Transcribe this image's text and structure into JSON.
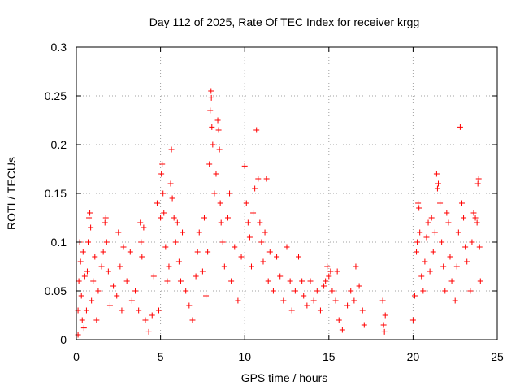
{
  "chart_data": {
    "type": "scatter",
    "title": "Day 112 of 2025, Rate Of TEC Index for receiver krgg",
    "xlabel": "GPS time / hours",
    "ylabel": "ROTI / TECUs",
    "xlim": [
      0,
      25
    ],
    "ylim": [
      0,
      0.3
    ],
    "xticks": [
      "0",
      "5",
      "10",
      "15",
      "20",
      "25"
    ],
    "yticks": [
      "0",
      "0.05",
      "0.1",
      "0.15",
      "0.2",
      "0.25",
      "0.3"
    ],
    "grid": true,
    "legend": "none",
    "marker": "plus",
    "color": "#ff0000",
    "series": [
      {
        "points": [
          [
            0.1,
            0.005
          ],
          [
            0.1,
            0.03
          ],
          [
            0.15,
            0.06
          ],
          [
            0.2,
            0.1
          ],
          [
            0.25,
            0.08
          ],
          [
            0.3,
            0.045
          ],
          [
            0.35,
            0.02
          ],
          [
            0.4,
            0.09
          ],
          [
            0.45,
            0.012
          ],
          [
            0.5,
            0.065
          ],
          [
            0.6,
            0.03
          ],
          [
            0.65,
            0.07
          ],
          [
            0.7,
            0.1
          ],
          [
            0.75,
            0.125
          ],
          [
            0.8,
            0.13
          ],
          [
            0.85,
            0.115
          ],
          [
            0.9,
            0.04
          ],
          [
            1.0,
            0.06
          ],
          [
            1.1,
            0.085
          ],
          [
            1.2,
            0.02
          ],
          [
            1.3,
            0.05
          ],
          [
            1.5,
            0.075
          ],
          [
            1.6,
            0.09
          ],
          [
            1.7,
            0.12
          ],
          [
            1.75,
            0.125
          ],
          [
            1.8,
            0.1
          ],
          [
            1.9,
            0.07
          ],
          [
            2.0,
            0.035
          ],
          [
            2.2,
            0.055
          ],
          [
            2.4,
            0.045
          ],
          [
            2.5,
            0.11
          ],
          [
            2.6,
            0.075
          ],
          [
            2.7,
            0.03
          ],
          [
            2.8,
            0.095
          ],
          [
            3.0,
            0.06
          ],
          [
            3.2,
            0.09
          ],
          [
            3.3,
            0.04
          ],
          [
            3.5,
            0.05
          ],
          [
            3.7,
            0.03
          ],
          [
            3.8,
            0.12
          ],
          [
            3.85,
            0.1
          ],
          [
            3.9,
            0.085
          ],
          [
            4.0,
            0.115
          ],
          [
            4.1,
            0.02
          ],
          [
            4.3,
            0.008
          ],
          [
            4.5,
            0.025
          ],
          [
            4.6,
            0.065
          ],
          [
            4.8,
            0.14
          ],
          [
            4.9,
            0.03
          ],
          [
            5.0,
            0.125
          ],
          [
            5.05,
            0.17
          ],
          [
            5.1,
            0.18
          ],
          [
            5.15,
            0.15
          ],
          [
            5.2,
            0.13
          ],
          [
            5.3,
            0.095
          ],
          [
            5.4,
            0.06
          ],
          [
            5.5,
            0.075
          ],
          [
            5.6,
            0.16
          ],
          [
            5.65,
            0.195
          ],
          [
            5.7,
            0.145
          ],
          [
            5.8,
            0.125
          ],
          [
            5.9,
            0.1
          ],
          [
            6.0,
            0.12
          ],
          [
            6.1,
            0.08
          ],
          [
            6.2,
            0.06
          ],
          [
            6.3,
            0.11
          ],
          [
            6.5,
            0.05
          ],
          [
            6.7,
            0.035
          ],
          [
            6.9,
            0.02
          ],
          [
            7.1,
            0.065
          ],
          [
            7.2,
            0.09
          ],
          [
            7.3,
            0.11
          ],
          [
            7.5,
            0.07
          ],
          [
            7.6,
            0.125
          ],
          [
            7.7,
            0.045
          ],
          [
            7.8,
            0.09
          ],
          [
            7.9,
            0.18
          ],
          [
            7.95,
            0.235
          ],
          [
            8.0,
            0.255
          ],
          [
            8.02,
            0.248
          ],
          [
            8.05,
            0.218
          ],
          [
            8.1,
            0.2
          ],
          [
            8.2,
            0.15
          ],
          [
            8.3,
            0.17
          ],
          [
            8.4,
            0.225
          ],
          [
            8.45,
            0.215
          ],
          [
            8.5,
            0.195
          ],
          [
            8.55,
            0.14
          ],
          [
            8.6,
            0.12
          ],
          [
            8.7,
            0.1
          ],
          [
            8.8,
            0.075
          ],
          [
            9.0,
            0.125
          ],
          [
            9.1,
            0.15
          ],
          [
            9.2,
            0.06
          ],
          [
            9.4,
            0.095
          ],
          [
            9.6,
            0.04
          ],
          [
            9.8,
            0.085
          ],
          [
            10.0,
            0.178
          ],
          [
            10.1,
            0.14
          ],
          [
            10.2,
            0.12
          ],
          [
            10.3,
            0.105
          ],
          [
            10.4,
            0.075
          ],
          [
            10.5,
            0.13
          ],
          [
            10.6,
            0.155
          ],
          [
            10.7,
            0.215
          ],
          [
            10.8,
            0.165
          ],
          [
            10.9,
            0.12
          ],
          [
            11.0,
            0.1
          ],
          [
            11.1,
            0.08
          ],
          [
            11.2,
            0.11
          ],
          [
            11.3,
            0.165
          ],
          [
            11.4,
            0.06
          ],
          [
            11.5,
            0.09
          ],
          [
            11.7,
            0.05
          ],
          [
            11.9,
            0.085
          ],
          [
            12.1,
            0.065
          ],
          [
            12.3,
            0.04
          ],
          [
            12.5,
            0.095
          ],
          [
            12.7,
            0.06
          ],
          [
            12.8,
            0.03
          ],
          [
            13.0,
            0.05
          ],
          [
            13.2,
            0.085
          ],
          [
            13.4,
            0.06
          ],
          [
            13.5,
            0.045
          ],
          [
            13.7,
            0.035
          ],
          [
            13.9,
            0.06
          ],
          [
            14.1,
            0.04
          ],
          [
            14.3,
            0.05
          ],
          [
            14.5,
            0.03
          ],
          [
            14.7,
            0.055
          ],
          [
            14.8,
            0.06
          ],
          [
            14.9,
            0.075
          ],
          [
            15.0,
            0.065
          ],
          [
            15.1,
            0.07
          ],
          [
            15.2,
            0.05
          ],
          [
            15.4,
            0.04
          ],
          [
            15.5,
            0.07
          ],
          [
            15.6,
            0.02
          ],
          [
            15.8,
            0.01
          ],
          [
            16.1,
            0.035
          ],
          [
            16.3,
            0.05
          ],
          [
            16.5,
            0.04
          ],
          [
            16.6,
            0.075
          ],
          [
            16.8,
            0.055
          ],
          [
            17.0,
            0.03
          ],
          [
            17.1,
            0.015
          ],
          [
            18.2,
            0.04
          ],
          [
            18.25,
            0.015
          ],
          [
            18.3,
            0.008
          ],
          [
            18.35,
            0.025
          ],
          [
            20.0,
            0.02
          ],
          [
            20.1,
            0.045
          ],
          [
            20.2,
            0.09
          ],
          [
            20.25,
            0.1
          ],
          [
            20.3,
            0.14
          ],
          [
            20.35,
            0.135
          ],
          [
            20.4,
            0.11
          ],
          [
            20.5,
            0.065
          ],
          [
            20.6,
            0.05
          ],
          [
            20.7,
            0.08
          ],
          [
            20.8,
            0.105
          ],
          [
            20.9,
            0.12
          ],
          [
            21.0,
            0.07
          ],
          [
            21.1,
            0.125
          ],
          [
            21.2,
            0.09
          ],
          [
            21.3,
            0.11
          ],
          [
            21.4,
            0.17
          ],
          [
            21.45,
            0.155
          ],
          [
            21.5,
            0.16
          ],
          [
            21.6,
            0.14
          ],
          [
            21.7,
            0.1
          ],
          [
            21.8,
            0.075
          ],
          [
            21.9,
            0.05
          ],
          [
            22.0,
            0.13
          ],
          [
            22.1,
            0.12
          ],
          [
            22.2,
            0.085
          ],
          [
            22.3,
            0.06
          ],
          [
            22.5,
            0.04
          ],
          [
            22.6,
            0.075
          ],
          [
            22.7,
            0.11
          ],
          [
            22.8,
            0.218
          ],
          [
            22.9,
            0.14
          ],
          [
            23.0,
            0.125
          ],
          [
            23.1,
            0.095
          ],
          [
            23.2,
            0.08
          ],
          [
            23.4,
            0.05
          ],
          [
            23.5,
            0.1
          ],
          [
            23.6,
            0.13
          ],
          [
            23.7,
            0.125
          ],
          [
            23.8,
            0.12
          ],
          [
            23.85,
            0.16
          ],
          [
            23.9,
            0.165
          ],
          [
            23.95,
            0.095
          ],
          [
            24.0,
            0.06
          ]
        ]
      }
    ]
  }
}
